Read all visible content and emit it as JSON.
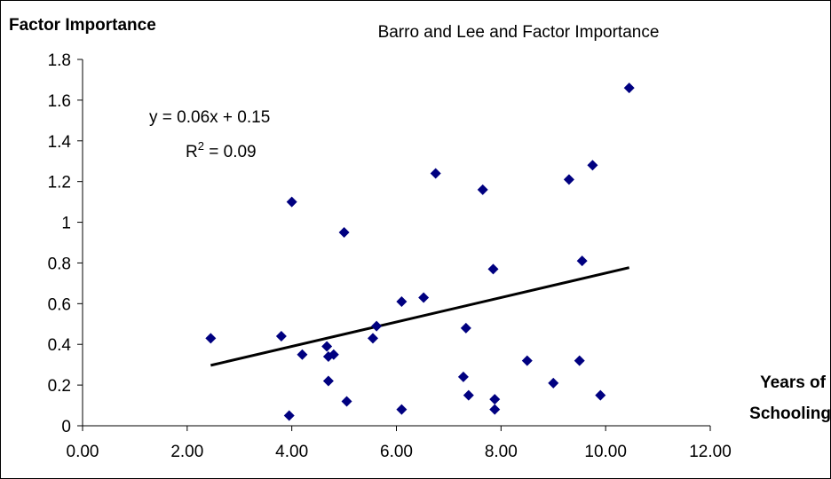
{
  "chart_data": {
    "type": "scatter",
    "title": "Barro and Lee and Factor Importance",
    "ylabel": "Factor Importance",
    "xlabel": [
      "Years of",
      "Schooling"
    ],
    "xlim": [
      0,
      12
    ],
    "ylim": [
      0,
      1.8
    ],
    "x_ticks": [
      "0.00",
      "2.00",
      "4.00",
      "6.00",
      "8.00",
      "10.00",
      "12.00"
    ],
    "y_ticks": [
      "0",
      "0.2",
      "0.4",
      "0.6",
      "0.8",
      "1",
      "1.2",
      "1.4",
      "1.6",
      "1.8"
    ],
    "grid": false,
    "marker": "diamond",
    "marker_color": "#000080",
    "trendline": {
      "type": "linear",
      "slope": 0.06,
      "intercept": 0.15,
      "x_range": [
        2.45,
        10.45
      ],
      "color": "#000000",
      "equation_label": "y = 0.06x + 0.15",
      "r2_label_prefix": "R",
      "r2_label_sup": "2",
      "r2_label_suffix": " = 0.09"
    },
    "points": [
      {
        "x": 2.45,
        "y": 0.43
      },
      {
        "x": 3.8,
        "y": 0.44
      },
      {
        "x": 3.95,
        "y": 0.05
      },
      {
        "x": 4.0,
        "y": 1.1
      },
      {
        "x": 4.2,
        "y": 0.35
      },
      {
        "x": 4.67,
        "y": 0.39
      },
      {
        "x": 4.7,
        "y": 0.34
      },
      {
        "x": 4.7,
        "y": 0.22
      },
      {
        "x": 4.8,
        "y": 0.35
      },
      {
        "x": 5.0,
        "y": 0.95
      },
      {
        "x": 5.05,
        "y": 0.12
      },
      {
        "x": 5.55,
        "y": 0.43
      },
      {
        "x": 5.62,
        "y": 0.49
      },
      {
        "x": 6.1,
        "y": 0.61
      },
      {
        "x": 6.1,
        "y": 0.08
      },
      {
        "x": 6.52,
        "y": 0.63
      },
      {
        "x": 6.75,
        "y": 1.24
      },
      {
        "x": 7.28,
        "y": 0.24
      },
      {
        "x": 7.33,
        "y": 0.48
      },
      {
        "x": 7.38,
        "y": 0.15
      },
      {
        "x": 7.65,
        "y": 1.16
      },
      {
        "x": 7.85,
        "y": 0.77
      },
      {
        "x": 7.88,
        "y": 0.13
      },
      {
        "x": 7.88,
        "y": 0.08
      },
      {
        "x": 8.5,
        "y": 0.32
      },
      {
        "x": 9.0,
        "y": 0.21
      },
      {
        "x": 9.3,
        "y": 1.21
      },
      {
        "x": 9.5,
        "y": 0.32
      },
      {
        "x": 9.55,
        "y": 0.81
      },
      {
        "x": 9.75,
        "y": 1.28
      },
      {
        "x": 9.9,
        "y": 0.15
      },
      {
        "x": 10.45,
        "y": 1.66
      }
    ]
  }
}
